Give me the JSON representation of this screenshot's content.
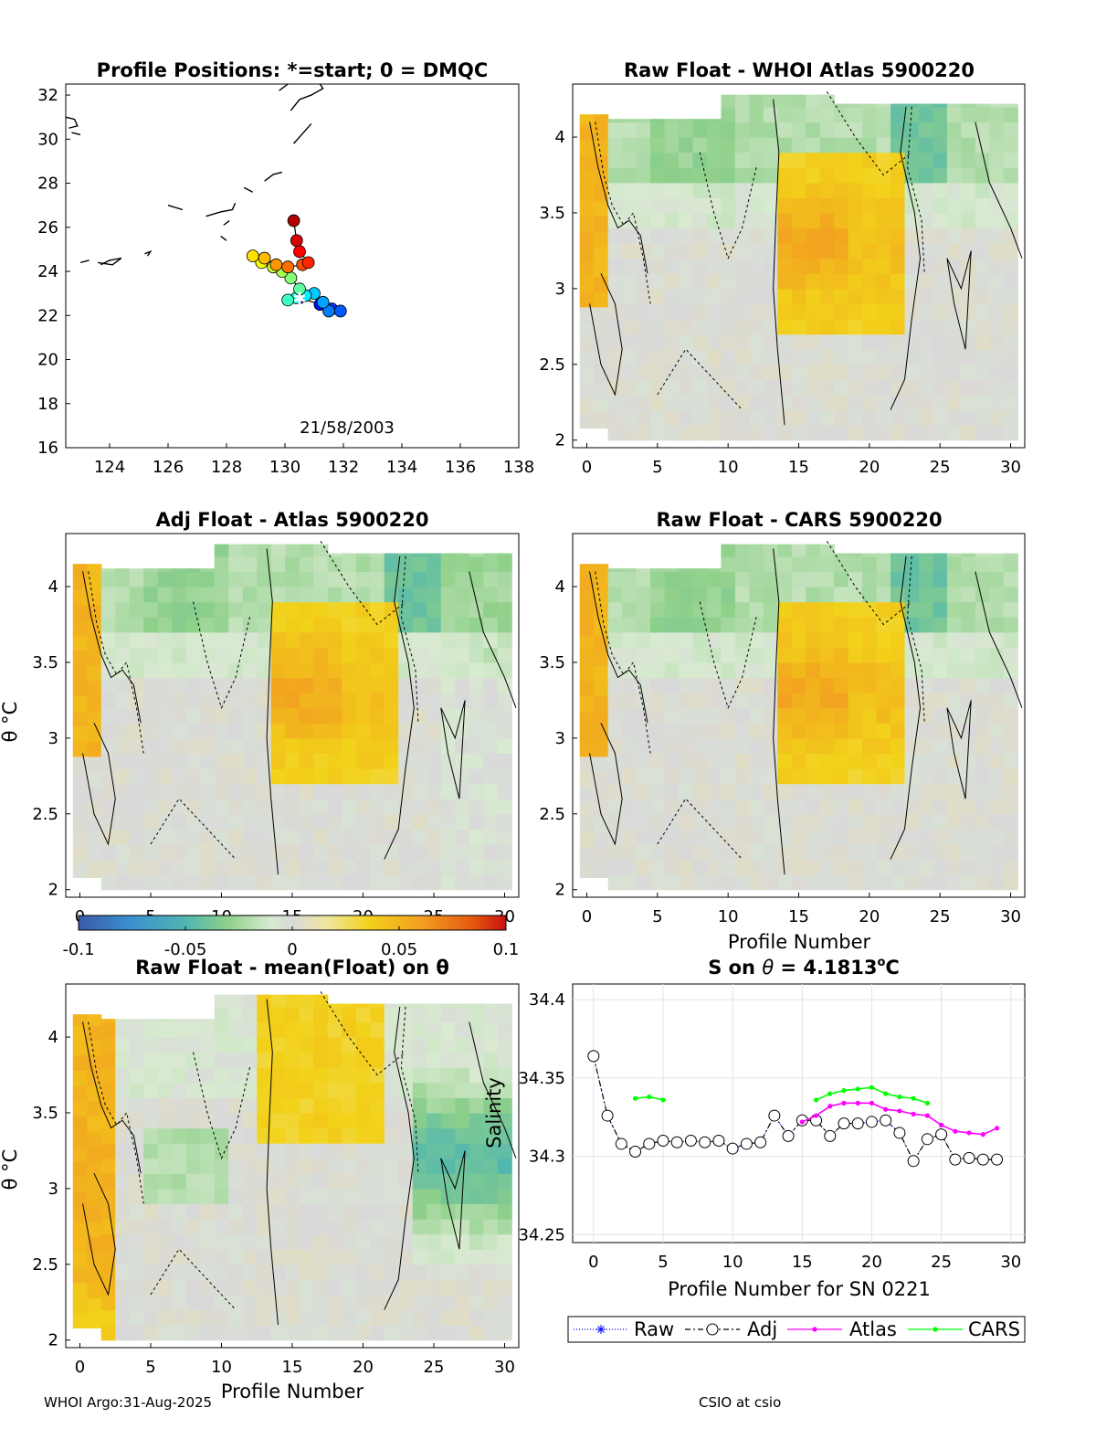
{
  "footer": {
    "left": "WHOI Argo:31-Aug-2025",
    "right": "CSIO at csio"
  },
  "map": {
    "title": "Profile Positions: *=start; 0 = DMQC",
    "date_label": "21/58/2003",
    "xlim": [
      122.5,
      138
    ],
    "ylim": [
      16,
      32.5
    ],
    "xticks": [
      "124",
      "126",
      "128",
      "130",
      "132",
      "134",
      "136",
      "138"
    ],
    "yticks": [
      "16",
      "18",
      "20",
      "22",
      "24",
      "26",
      "28",
      "30",
      "32"
    ],
    "track": [
      [
        130.5,
        22.8
      ],
      [
        131.2,
        22.5
      ],
      [
        131.6,
        22.3
      ],
      [
        131.9,
        22.2
      ],
      [
        131.5,
        22.2
      ],
      [
        131.3,
        22.6
      ],
      [
        131.0,
        23.0
      ],
      [
        130.7,
        22.9
      ],
      [
        130.4,
        22.8
      ],
      [
        130.1,
        22.7
      ],
      [
        130.5,
        23.2
      ],
      [
        130.2,
        23.7
      ],
      [
        129.9,
        24.0
      ],
      [
        129.6,
        24.2
      ],
      [
        129.2,
        24.4
      ],
      [
        128.9,
        24.7
      ],
      [
        129.3,
        24.6
      ],
      [
        129.7,
        24.3
      ],
      [
        130.1,
        24.2
      ],
      [
        130.6,
        24.3
      ],
      [
        130.8,
        24.4
      ],
      [
        130.5,
        24.9
      ],
      [
        130.4,
        25.4
      ],
      [
        130.3,
        26.3
      ]
    ],
    "start_marker": "white-star"
  },
  "colorbar": {
    "ticks": [
      "-0.1",
      "-0.05",
      "0",
      "0.05",
      "0.1"
    ],
    "range": [
      -0.1,
      0.1
    ]
  },
  "panels": {
    "raw_atlas": {
      "title": "Raw Float - WHOI Atlas  5900220"
    },
    "adj_atlas": {
      "title": "Adj Float - Atlas  5900220"
    },
    "raw_cars": {
      "title": "Raw Float - CARS  5900220"
    },
    "raw_mean": {
      "title": "Raw Float - mean(Float) on θ"
    },
    "xticks": [
      "0",
      "5",
      "10",
      "15",
      "20",
      "25",
      "30"
    ],
    "yticks": [
      "2",
      "2.5",
      "3",
      "3.5",
      "4"
    ],
    "ylabel": "θ °C",
    "xlabel_mid": "Profile Number",
    "xlabel_bottom": "Profile Number"
  },
  "chart_data": [
    {
      "type": "heatmap",
      "title": "Raw Float - WHOI Atlas  5900220",
      "xlim": [
        -1,
        31
      ],
      "ylim": [
        1.95,
        4.35
      ],
      "cmap_range": [
        -0.1,
        0.1
      ]
    },
    {
      "type": "heatmap",
      "title": "Adj Float - Atlas  5900220",
      "xlim": [
        -1,
        31
      ],
      "ylim": [
        1.95,
        4.35
      ],
      "cmap_range": [
        -0.1,
        0.1
      ]
    },
    {
      "type": "heatmap",
      "title": "Raw Float - CARS  5900220",
      "xlim": [
        -1,
        31
      ],
      "ylim": [
        1.95,
        4.35
      ],
      "cmap_range": [
        -0.1,
        0.1
      ]
    },
    {
      "type": "heatmap",
      "title": "Raw Float - mean(Float) on θ",
      "xlim": [
        -1,
        31
      ],
      "ylim": [
        1.95,
        4.35
      ],
      "cmap_range": [
        -0.1,
        0.1
      ]
    },
    {
      "type": "line",
      "title": "S on θ = 4.1813°C",
      "title_prefix": "S on ",
      "title_theta": "θ",
      "title_value": " = 4.1813",
      "title_sup": "o",
      "title_unit": "C",
      "xlabel": "Profile Number for SN 0221",
      "ylabel": "Salinity",
      "xlim": [
        -1.5,
        31
      ],
      "ylim": [
        34.245,
        34.41
      ],
      "xticks": [
        "0",
        "5",
        "10",
        "15",
        "20",
        "25",
        "30"
      ],
      "yticks": [
        "34.25",
        "34.3",
        "34.35",
        "34.4"
      ],
      "series": [
        {
          "name": "Raw",
          "color": "#0000ff",
          "x": [
            0,
            1,
            2,
            3,
            4,
            5,
            6,
            7,
            8,
            9,
            10,
            11,
            12,
            13,
            14,
            15,
            16,
            17,
            18,
            19,
            20,
            21,
            22,
            23,
            24,
            25,
            26,
            27,
            28,
            29
          ],
          "y": [
            34.364,
            34.326,
            34.308,
            34.303,
            34.308,
            34.31,
            34.309,
            34.31,
            34.309,
            34.31,
            34.305,
            34.308,
            34.309,
            34.326,
            34.313,
            34.323,
            34.323,
            34.313,
            34.321,
            34.321,
            34.322,
            34.323,
            34.315,
            34.297,
            34.311,
            34.314,
            34.298,
            34.299,
            34.298,
            34.298
          ]
        },
        {
          "name": "Adj",
          "color": "#000000",
          "x": [
            0,
            1,
            2,
            3,
            4,
            5,
            6,
            7,
            8,
            9,
            10,
            11,
            12,
            13,
            14,
            15,
            16,
            17,
            18,
            19,
            20,
            21,
            22,
            23,
            24,
            25,
            26,
            27,
            28,
            29
          ],
          "y": [
            34.364,
            34.326,
            34.308,
            34.303,
            34.308,
            34.31,
            34.309,
            34.31,
            34.309,
            34.31,
            34.305,
            34.308,
            34.309,
            34.326,
            34.313,
            34.323,
            34.323,
            34.313,
            34.321,
            34.321,
            34.322,
            34.323,
            34.315,
            34.297,
            34.311,
            34.314,
            34.298,
            34.299,
            34.298,
            34.298
          ]
        },
        {
          "name": "Atlas",
          "color": "#ff00ff",
          "x": [
            15,
            16,
            17,
            18,
            19,
            20,
            21,
            22,
            23,
            24,
            25,
            26,
            27,
            28,
            29
          ],
          "y": [
            34.322,
            34.326,
            34.332,
            34.334,
            34.334,
            34.334,
            34.33,
            34.329,
            34.327,
            34.326,
            34.32,
            34.316,
            34.315,
            34.314,
            34.318
          ]
        },
        {
          "name": "CARS",
          "color": "#00ff00",
          "x": [
            3,
            4,
            5,
            16,
            17,
            18,
            19,
            20,
            21,
            22,
            23,
            24
          ],
          "y": [
            34.337,
            34.338,
            34.336,
            34.336,
            34.34,
            34.342,
            34.343,
            34.344,
            34.34,
            34.338,
            34.337,
            34.334
          ]
        }
      ],
      "legend": [
        "Raw",
        "Adj",
        "Atlas",
        "CARS"
      ],
      "legend_position": "below"
    }
  ]
}
